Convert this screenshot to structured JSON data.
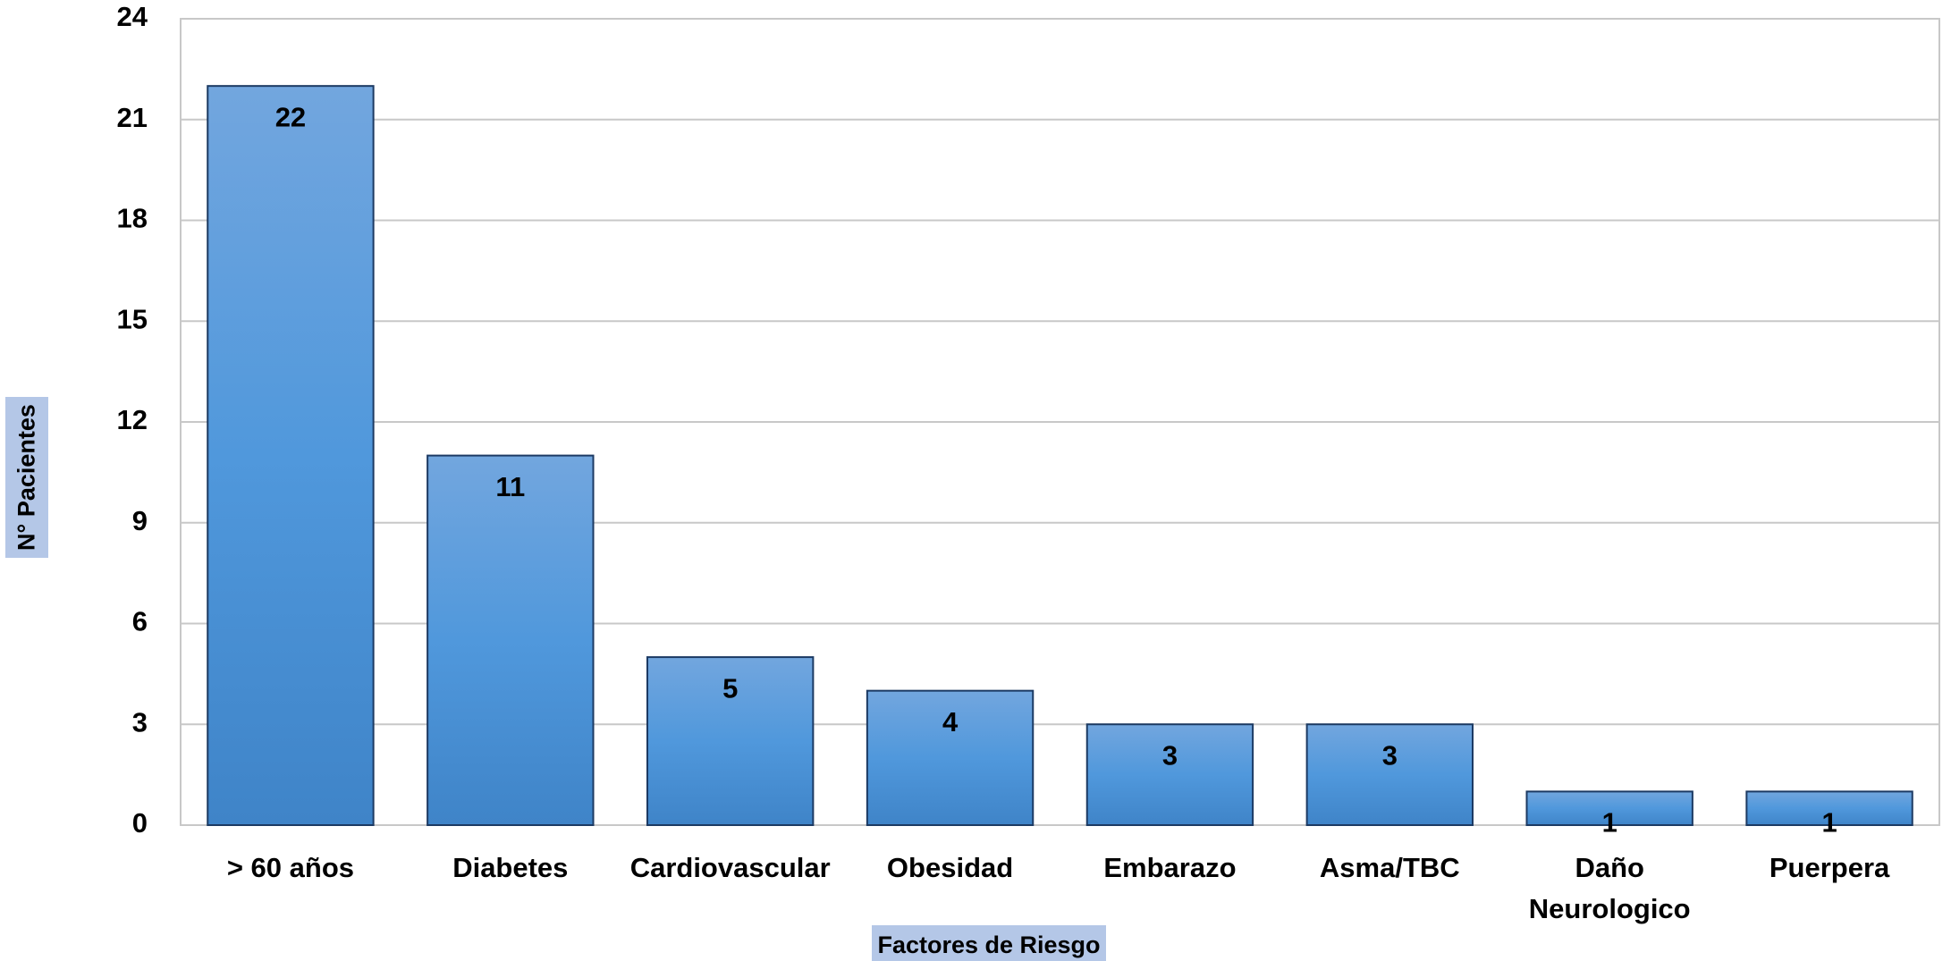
{
  "chart_data": {
    "type": "bar",
    "x_label": "Factores de Riesgo",
    "y_label": "N° Pacientes",
    "categories": [
      "> 60 años",
      "Diabetes",
      "Cardiovascular",
      "Obesidad",
      "Embarazo",
      "Asma/TBC",
      "Daño Neurologico",
      "Puerpera"
    ],
    "values": [
      22,
      11,
      5,
      4,
      3,
      3,
      1,
      1
    ],
    "color": "#4a8fd6",
    "ylim": [
      0,
      24
    ],
    "yticks": [
      0,
      3,
      6,
      9,
      12,
      15,
      18,
      21,
      24
    ],
    "grid": true
  }
}
